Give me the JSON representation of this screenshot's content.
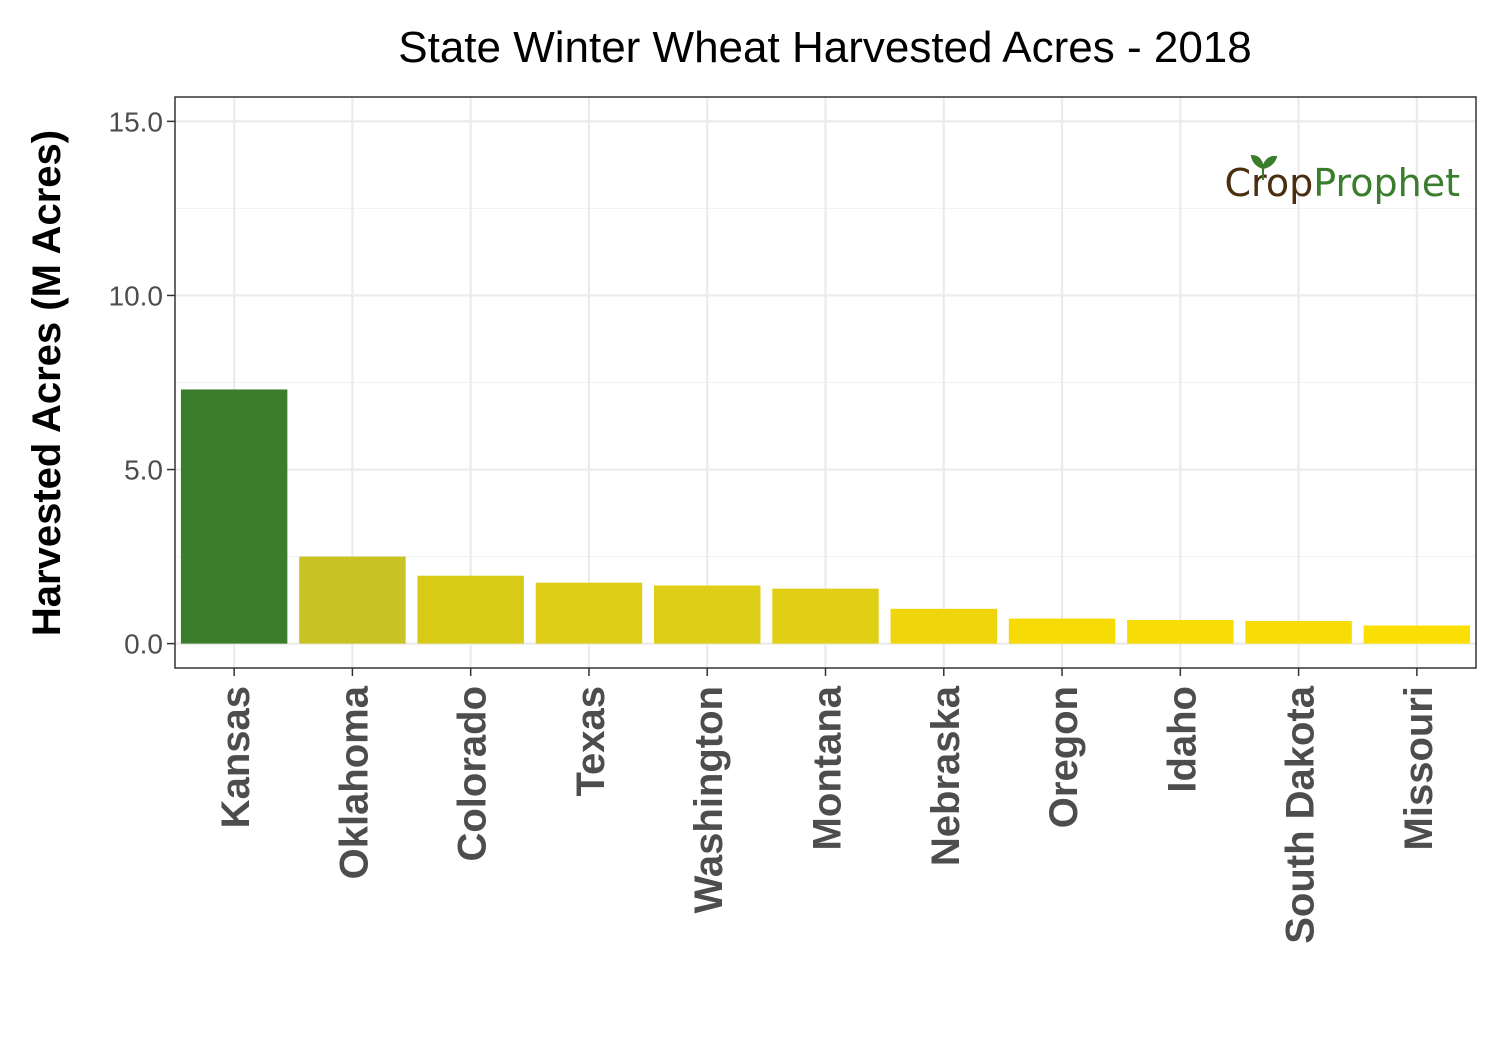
{
  "chart_data": {
    "type": "bar",
    "title": "State Winter Wheat Harvested Acres - 2018",
    "ylabel": "Harvested Acres (M Acres)",
    "xlabel": "",
    "categories": [
      "Kansas",
      "Oklahoma",
      "Colorado",
      "Texas",
      "Washington",
      "Montana",
      "Nebraska",
      "Oregon",
      "Idaho",
      "South Dakota",
      "Missouri"
    ],
    "values": [
      7.3,
      2.5,
      1.95,
      1.75,
      1.67,
      1.58,
      1.0,
      0.72,
      0.68,
      0.65,
      0.52
    ],
    "bar_colors": [
      "#3a7d2c",
      "#c8c322",
      "#d8cb18",
      "#ddcd16",
      "#dfce16",
      "#e0cf15",
      "#efd60c",
      "#f7db06",
      "#f8dc05",
      "#f8dc05",
      "#fbde03"
    ],
    "ylim": [
      -0.7,
      15.7
    ],
    "yticks": [
      0.0,
      5.0,
      10.0,
      15.0
    ],
    "ytick_labels": [
      "0.0",
      "5.0",
      "10.0",
      "15.0"
    ],
    "grid": true,
    "legend": "none"
  },
  "watermark": {
    "part1": "Crop",
    "part2": "Prophet",
    "color_dark": "#4a2e0f",
    "color_green": "#3a7d2c"
  }
}
